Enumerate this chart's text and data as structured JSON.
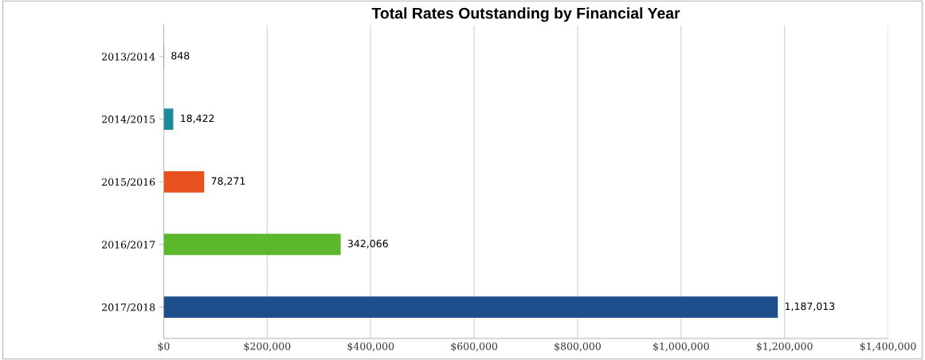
{
  "chart_data": {
    "type": "bar",
    "orientation": "horizontal",
    "title": "Total Rates Outstanding by Financial Year",
    "categories": [
      "2013/2014",
      "2014/2015",
      "2015/2016",
      "2016/2017",
      "2017/2018"
    ],
    "values": [
      848,
      18422,
      78271,
      342066,
      1187013
    ],
    "colors": [
      "#7b3f9e",
      "#1f8a9c",
      "#e8501e",
      "#5cb82a",
      "#1f4e8c"
    ],
    "value_labels": [
      "848",
      "18,422",
      "78,271",
      "342,066",
      "1,187,013"
    ],
    "xlim": [
      0,
      1400000
    ],
    "xticks": [
      {
        "value": 0,
        "label": "$0"
      },
      {
        "value": 200000,
        "label": "$200,000"
      },
      {
        "value": 400000,
        "label": "$400,000"
      },
      {
        "value": 600000,
        "label": "$600,000"
      },
      {
        "value": 800000,
        "label": "$800,000"
      },
      {
        "value": 1000000,
        "label": "$1,000,000"
      },
      {
        "value": 1200000,
        "label": "$1,200,000"
      },
      {
        "value": 1400000,
        "label": "$1,400,000"
      }
    ],
    "grid": "x",
    "legend": false
  }
}
